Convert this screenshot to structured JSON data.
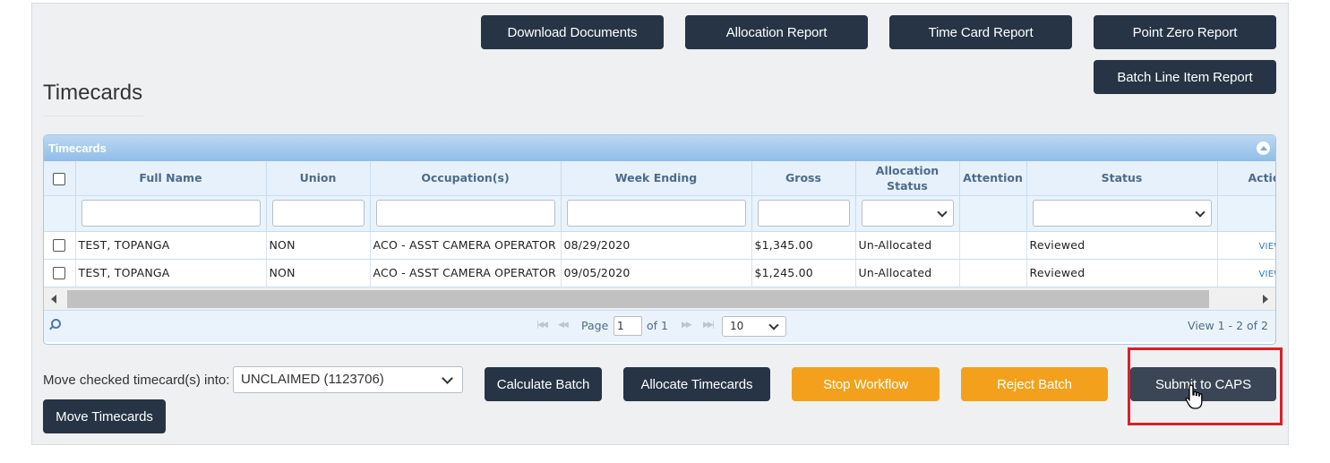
{
  "toolbar": {
    "download_documents": "Download Documents",
    "allocation_report": "Allocation Report",
    "time_card_report": "Time Card Report",
    "point_zero_report": "Point Zero Report",
    "batch_line_item_report": "Batch Line Item Report"
  },
  "page_title": "Timecards",
  "grid": {
    "caption": "Timecards",
    "columns": [
      "Full Name",
      "Union",
      "Occupation(s)",
      "Week Ending",
      "Gross",
      "Allocation Status",
      "Attention",
      "Status",
      "Actio"
    ],
    "rows": [
      {
        "full_name": "TEST, TOPANGA",
        "union": "NON",
        "occupation": "ACO - ASST CAMERA OPERATOR",
        "week_ending": "08/29/2020",
        "gross": "$1,345.00",
        "allocation_status": "Un-Allocated",
        "attention": "",
        "status": "Reviewed",
        "action": "VIEW"
      },
      {
        "full_name": "TEST, TOPANGA",
        "union": "NON",
        "occupation": "ACO - ASST CAMERA OPERATOR",
        "week_ending": "09/05/2020",
        "gross": "$1,245.00",
        "allocation_status": "Un-Allocated",
        "attention": "",
        "status": "Reviewed",
        "action": "VIEW"
      }
    ],
    "pager": {
      "page_label": "Page",
      "page_value": "1",
      "of_label": "of 1",
      "rows_per_page": "10",
      "view_count": "View 1 - 2 of 2"
    }
  },
  "bottom": {
    "move_label": "Move checked timecard(s) into:",
    "move_select_value": "UNCLAIMED (1123706)",
    "move_timecards": "Move Timecards",
    "calculate_batch": "Calculate Batch",
    "allocate_timecards": "Allocate Timecards",
    "stop_workflow": "Stop Workflow",
    "reject_batch": "Reject Batch",
    "submit_to_caps": "Submit to CAPS"
  },
  "colors": {
    "dark_button": "#263445",
    "orange_button": "#f3a11c",
    "highlight": "#d9202a",
    "grid_caption": "#8fbde8"
  }
}
